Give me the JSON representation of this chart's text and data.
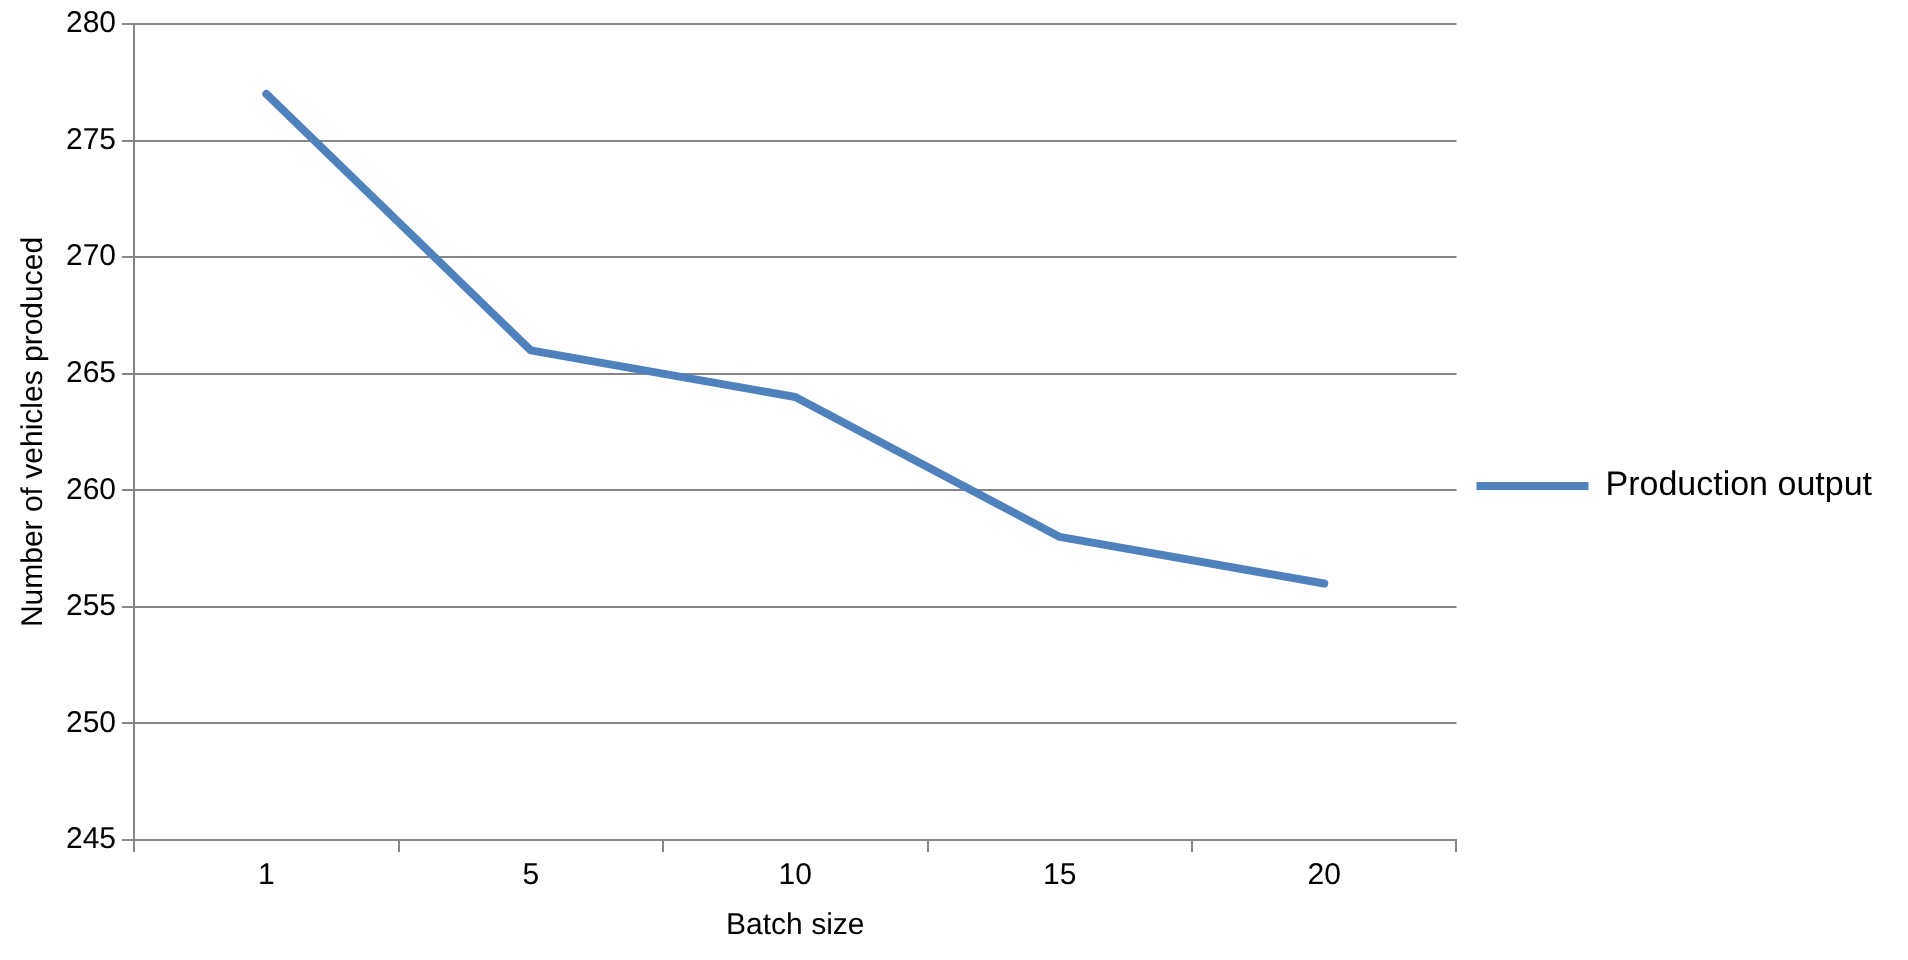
{
  "chart_data": {
    "type": "line",
    "xlabel": "Batch size",
    "ylabel": "Number of vehicles produced",
    "categories": [
      "1",
      "5",
      "10",
      "15",
      "20"
    ],
    "series": [
      {
        "name": "Production output",
        "color": "#4f81bd",
        "values": [
          277,
          266,
          264,
          258,
          256
        ]
      }
    ],
    "ylim": [
      245,
      280
    ],
    "yticks": [
      245,
      250,
      255,
      260,
      265,
      270,
      275,
      280
    ],
    "grid": "y",
    "legend": "right",
    "marker": "none",
    "line_style": "solid"
  }
}
